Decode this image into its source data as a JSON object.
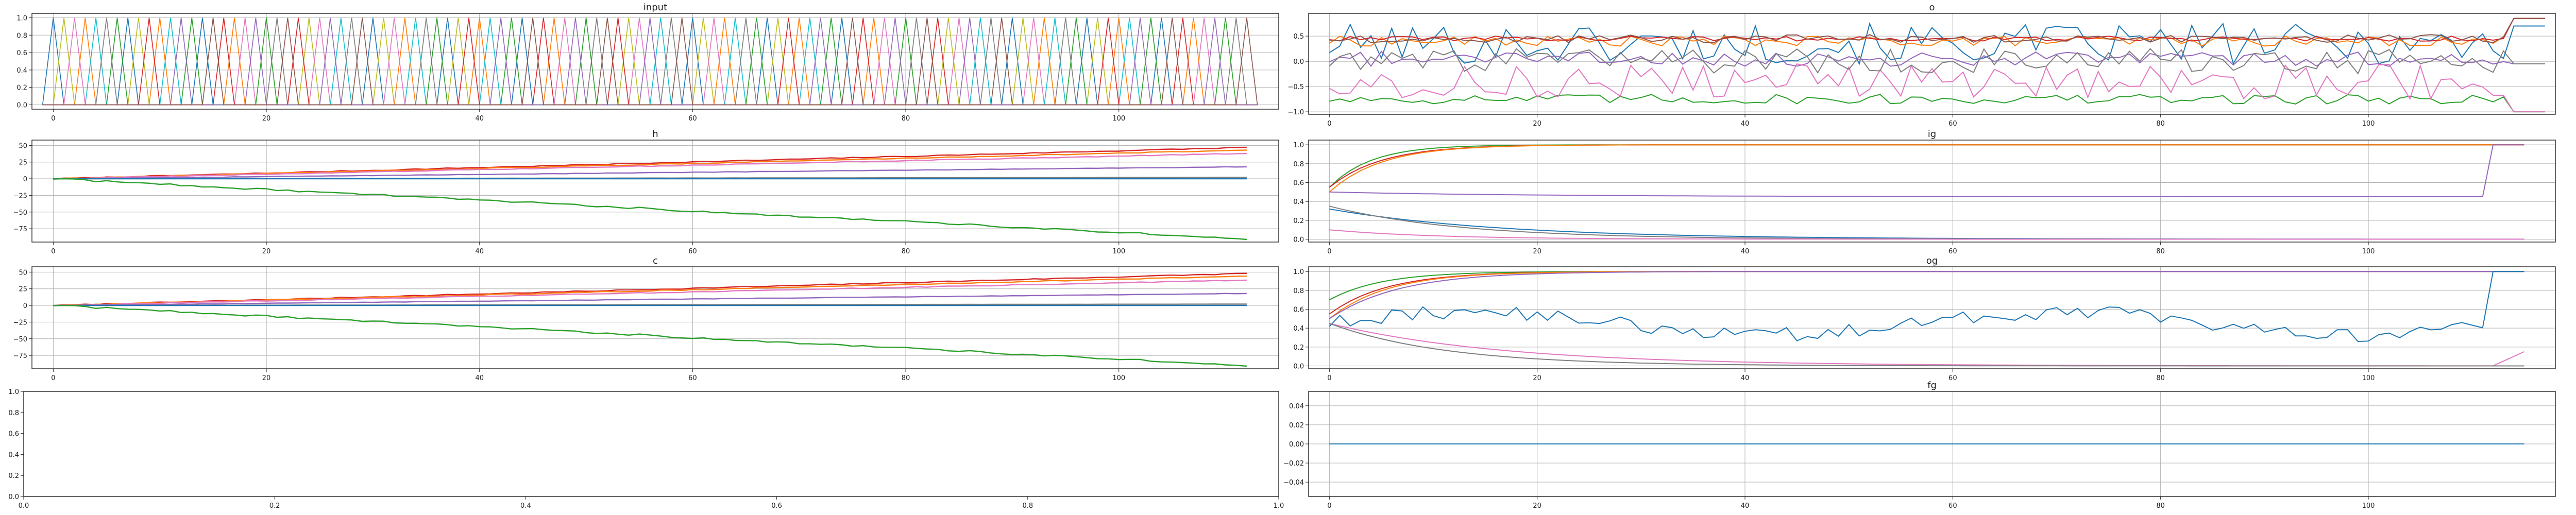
{
  "chart_data": [
    {
      "id": "input",
      "type": "line",
      "title": "input",
      "xlim": [
        -2,
        115
      ],
      "ylim": [
        -0.05,
        1.05
      ],
      "xticks": [
        0,
        20,
        40,
        60,
        80,
        100
      ],
      "yticks": [
        0.0,
        0.2,
        0.4,
        0.6,
        0.8,
        1.0
      ],
      "ytick_labels": [
        "0.0",
        "0.2",
        "0.4",
        "0.6",
        "0.8",
        "1.0"
      ],
      "grid": true,
      "legend": "none",
      "series_desc": "one-hot inputs, each step a single series spikes from 0 to 1 and back",
      "pattern": "onehot"
    },
    {
      "id": "o",
      "type": "line",
      "title": "o",
      "xlim": [
        -2,
        118
      ],
      "ylim": [
        -1.05,
        0.95
      ],
      "xticks": [
        0,
        20,
        40,
        60,
        80,
        100
      ],
      "yticks": [
        -1.0,
        -0.5,
        0.0,
        0.5
      ],
      "ytick_labels": [
        "−1.0",
        "−0.5",
        "0.0",
        "0.5"
      ],
      "grid": true,
      "legend": "none",
      "pattern": "noisy",
      "series": [
        {
          "color": "#1f77b4",
          "base": 0.35,
          "amp": 0.4,
          "end": 0.7
        },
        {
          "color": "#ff7f0e",
          "base": 0.4,
          "amp": 0.1,
          "end": 0.85
        },
        {
          "color": "#2ca02c",
          "base": -0.75,
          "amp": 0.1,
          "end": -1.0
        },
        {
          "color": "#d62728",
          "base": 0.45,
          "amp": 0.05,
          "end": 0.85
        },
        {
          "color": "#9467bd",
          "base": 0.05,
          "amp": 0.15,
          "end": -0.05
        },
        {
          "color": "#e377c2",
          "base": -0.4,
          "amp": 0.35,
          "end": -1.0
        },
        {
          "color": "#7f7f7f",
          "base": 0.0,
          "amp": 0.25,
          "end": -0.05
        },
        {
          "color": "#8c564b",
          "base": 0.45,
          "amp": 0.08,
          "end": 0.85
        }
      ]
    },
    {
      "id": "h",
      "type": "line",
      "title": "h",
      "xlim": [
        -2,
        115
      ],
      "ylim": [
        -95,
        58
      ],
      "xticks": [
        0,
        20,
        40,
        60,
        80,
        100
      ],
      "yticks": [
        -75,
        -50,
        -25,
        0,
        25,
        50
      ],
      "ytick_labels": [
        "−75",
        "−50",
        "−25",
        "0",
        "25",
        "50"
      ],
      "grid": true,
      "legend": "none",
      "pattern": "drift",
      "series": [
        {
          "color": "#d62728",
          "end": 47
        },
        {
          "color": "#ff7f0e",
          "end": 43
        },
        {
          "color": "#e377c2",
          "end": 38
        },
        {
          "color": "#9467bd",
          "end": 18
        },
        {
          "color": "#7f7f7f",
          "end": 2
        },
        {
          "color": "#1f77b4",
          "end": 0
        },
        {
          "color": "#2ca02c",
          "end": -90
        }
      ]
    },
    {
      "id": "ig",
      "type": "line",
      "title": "ig",
      "xlim": [
        -2,
        118
      ],
      "ylim": [
        -0.03,
        1.05
      ],
      "xticks": [
        0,
        20,
        40,
        60,
        80,
        100
      ],
      "yticks": [
        0.0,
        0.2,
        0.4,
        0.6,
        0.8,
        1.0
      ],
      "ytick_labels": [
        "0.0",
        "0.2",
        "0.4",
        "0.6",
        "0.8",
        "1.0"
      ],
      "grid": true,
      "legend": "none",
      "pattern": "gate",
      "series": [
        {
          "color": "#2ca02c",
          "start": 0.55,
          "target": 1.0,
          "rate": 0.25
        },
        {
          "color": "#d62728",
          "start": 0.55,
          "target": 1.0,
          "rate": 0.2
        },
        {
          "color": "#ff7f0e",
          "start": 0.5,
          "target": 1.0,
          "rate": 0.2
        },
        {
          "color": "#9467bd",
          "start": 0.5,
          "target": 0.45,
          "rate": 0.05,
          "jump": 1.0
        },
        {
          "color": "#1f77b4",
          "start": 0.32,
          "target": 0.0,
          "rate": 0.06
        },
        {
          "color": "#7f7f7f",
          "start": 0.35,
          "target": 0.0,
          "rate": 0.08
        },
        {
          "color": "#e377c2",
          "start": 0.1,
          "target": 0.0,
          "rate": 0.1
        }
      ]
    },
    {
      "id": "c",
      "type": "line",
      "title": "c",
      "xlim": [
        -2,
        115
      ],
      "ylim": [
        -95,
        58
      ],
      "xticks": [
        0,
        20,
        40,
        60,
        80,
        100
      ],
      "yticks": [
        -75,
        -50,
        -25,
        0,
        25,
        50
      ],
      "ytick_labels": [
        "−75",
        "−50",
        "−25",
        "0",
        "25",
        "50"
      ],
      "grid": true,
      "legend": "none",
      "pattern": "drift",
      "series": [
        {
          "color": "#d62728",
          "end": 48
        },
        {
          "color": "#ff7f0e",
          "end": 44
        },
        {
          "color": "#e377c2",
          "end": 38
        },
        {
          "color": "#9467bd",
          "end": 18
        },
        {
          "color": "#7f7f7f",
          "end": 2
        },
        {
          "color": "#1f77b4",
          "end": 0
        },
        {
          "color": "#2ca02c",
          "end": -90
        }
      ]
    },
    {
      "id": "og",
      "type": "line",
      "title": "og",
      "xlim": [
        -2,
        118
      ],
      "ylim": [
        -0.03,
        1.05
      ],
      "xticks": [
        0,
        20,
        40,
        60,
        80,
        100
      ],
      "yticks": [
        0.0,
        0.2,
        0.4,
        0.6,
        0.8,
        1.0
      ],
      "ytick_labels": [
        "0.0",
        "0.2",
        "0.4",
        "0.6",
        "0.8",
        "1.0"
      ],
      "grid": true,
      "legend": "none",
      "pattern": "gate",
      "series": [
        {
          "color": "#2ca02c",
          "start": 0.7,
          "target": 1.0,
          "rate": 0.2
        },
        {
          "color": "#d62728",
          "start": 0.55,
          "target": 1.0,
          "rate": 0.18
        },
        {
          "color": "#ff7f0e",
          "start": 0.5,
          "target": 1.0,
          "rate": 0.18
        },
        {
          "color": "#9467bd",
          "start": 0.5,
          "target": 1.0,
          "rate": 0.15
        },
        {
          "color": "#1f77b4",
          "start": 0.45,
          "target": 0.45,
          "rate": 0.05,
          "wander": 0.15,
          "jump": 1.0
        },
        {
          "color": "#e377c2",
          "start": 0.45,
          "target": 0.0,
          "rate": 0.06,
          "tail": 0.15
        },
        {
          "color": "#7f7f7f",
          "start": 0.45,
          "target": 0.0,
          "rate": 0.09
        }
      ]
    },
    {
      "id": "empty",
      "type": "line",
      "title": "",
      "xlim": [
        0.0,
        1.0
      ],
      "ylim": [
        0.0,
        1.0
      ],
      "xticks": [
        0.0,
        0.2,
        0.4,
        0.6,
        0.8,
        1.0
      ],
      "yticks": [
        0.0,
        0.2,
        0.4,
        0.6,
        0.8,
        1.0
      ],
      "xtick_labels": [
        "0.0",
        "0.2",
        "0.4",
        "0.6",
        "0.8",
        "1.0"
      ],
      "ytick_labels": [
        "0.0",
        "0.2",
        "0.4",
        "0.6",
        "0.8",
        "1.0"
      ],
      "grid": false,
      "legend": "none",
      "pattern": "none"
    },
    {
      "id": "fg",
      "type": "line",
      "title": "fg",
      "xlim": [
        -2,
        118
      ],
      "ylim": [
        -0.055,
        0.055
      ],
      "xticks": [
        0,
        20,
        40,
        60,
        80,
        100
      ],
      "yticks": [
        -0.04,
        -0.02,
        0.0,
        0.02,
        0.04
      ],
      "ytick_labels": [
        "−0.04",
        "−0.02",
        "0.00",
        "0.02",
        "0.04"
      ],
      "grid": true,
      "legend": "none",
      "pattern": "flat",
      "series": [
        {
          "color": "#1f77b4",
          "value": 0.0
        }
      ]
    }
  ]
}
